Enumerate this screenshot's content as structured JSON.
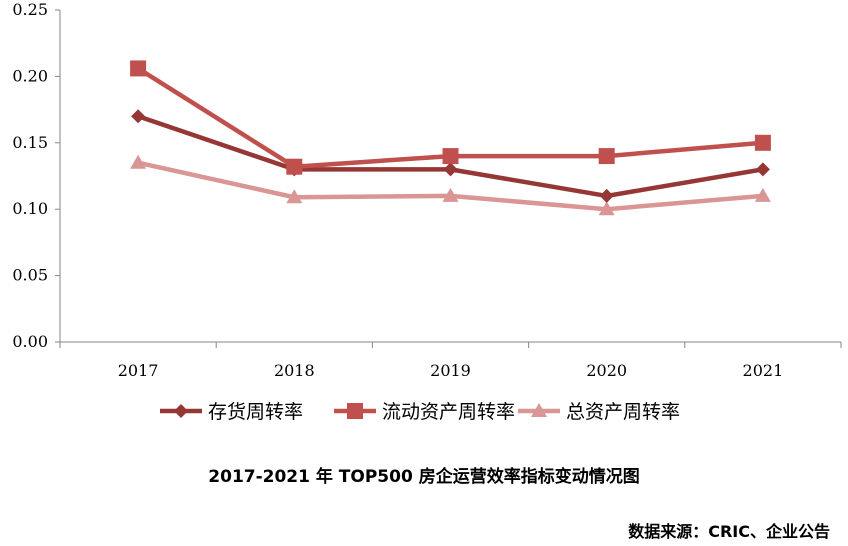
{
  "chart_data": {
    "type": "line",
    "title": "2017-2021 年 TOP500 房企运营效率指标变动情况图",
    "source": "数据来源：CRIC、企业公告",
    "categories": [
      "2017",
      "2018",
      "2019",
      "2020",
      "2021"
    ],
    "ylim": [
      0,
      0.25
    ],
    "yticks": [
      "0.00",
      "0.05",
      "0.10",
      "0.15",
      "0.20",
      "0.25"
    ],
    "legend_position": "bottom",
    "grid": false,
    "series": [
      {
        "name": "存货周转率",
        "values": [
          0.17,
          0.13,
          0.13,
          0.11,
          0.13
        ],
        "color": "#953735",
        "marker": "diamond"
      },
      {
        "name": "流动资产周转率",
        "values": [
          0.206,
          0.132,
          0.14,
          0.14,
          0.15
        ],
        "color": "#C0504D",
        "marker": "square"
      },
      {
        "name": "总资产周转率",
        "values": [
          0.135,
          0.109,
          0.11,
          0.1,
          0.11
        ],
        "color": "#D99694",
        "marker": "triangle"
      }
    ]
  }
}
